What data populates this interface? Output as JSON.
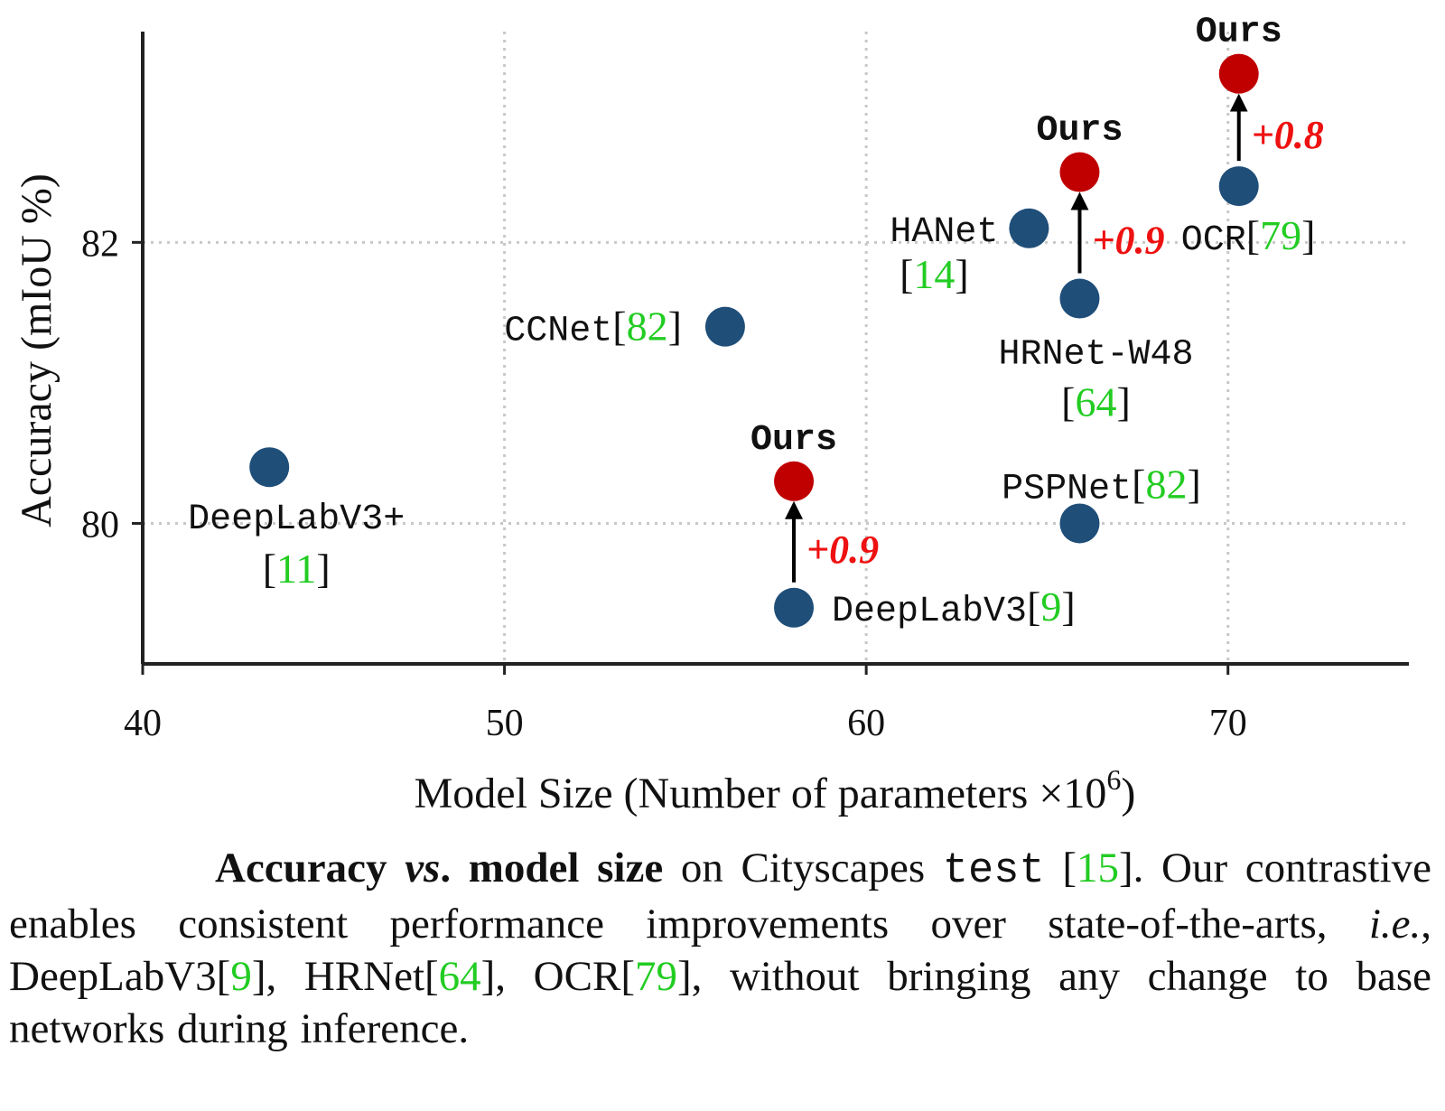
{
  "chart_data": {
    "type": "scatter",
    "xlabel_main": "Model Size (Number of parameters ",
    "xlabel_times": "×10",
    "xlabel_exp": "6",
    "xlabel_close": ")",
    "ylabel": "Accuracy (mIoU %)",
    "xlim": [
      40,
      75
    ],
    "ylim": [
      79.0,
      83.5
    ],
    "xticks": [
      40,
      50,
      60,
      70
    ],
    "yticks": [
      80,
      82
    ],
    "grid": "dotted",
    "colors": {
      "baseline": "#1f4e79",
      "ours": "#c00000",
      "gain": "#ee1111",
      "citation": "#22cc22",
      "arrow": "#000000"
    },
    "points": [
      {
        "name": "DeepLabV3+",
        "cite": "11",
        "x": 43.5,
        "y": 80.4,
        "group": "baseline"
      },
      {
        "name": "CCNet",
        "cite": "82",
        "x": 56.1,
        "y": 81.4,
        "group": "baseline"
      },
      {
        "name": "DeepLabV3",
        "cite": "9",
        "x": 58.0,
        "y": 79.4,
        "group": "baseline"
      },
      {
        "name": "HANet",
        "cite": "14",
        "x": 64.5,
        "y": 82.1,
        "group": "baseline"
      },
      {
        "name": "HRNet-W48",
        "cite": "64",
        "x": 65.9,
        "y": 81.6,
        "group": "baseline"
      },
      {
        "name": "PSPNet",
        "cite": "82",
        "x": 65.9,
        "y": 80.0,
        "group": "baseline"
      },
      {
        "name": "OCR",
        "cite": "79",
        "x": 70.3,
        "y": 82.4,
        "group": "baseline"
      },
      {
        "name": "Ours",
        "x": 58.0,
        "y": 80.3,
        "group": "ours"
      },
      {
        "name": "Ours",
        "x": 65.9,
        "y": 82.5,
        "group": "ours"
      },
      {
        "name": "Ours",
        "x": 70.3,
        "y": 83.2,
        "group": "ours"
      }
    ],
    "improvements": [
      {
        "x": 58.0,
        "from": 79.4,
        "to": 80.3,
        "label": "+0.9"
      },
      {
        "x": 65.9,
        "from": 81.6,
        "to": 82.5,
        "label": "+0.9"
      },
      {
        "x": 70.3,
        "from": 82.4,
        "to": 83.2,
        "label": "+0.8"
      }
    ]
  },
  "caption": {
    "bold_1": "Accuracy ",
    "bold_vs": "vs",
    "bold_2": ". model size",
    "t1": " on Cityscapes ",
    "tt_test": "test",
    "t2": " [",
    "cite_15": "15",
    "t3": "]. Our contrastive enables consistent performance improvements over state-of-the-arts, ",
    "ie": "i.e.",
    "t4": ", DeepLabV3[",
    "cite_9": "9",
    "t5": "], HRNet[",
    "cite_64": "64",
    "t6": "], OCR[",
    "cite_79": "79",
    "t7": "], without bringing any change to base networks during inference."
  }
}
